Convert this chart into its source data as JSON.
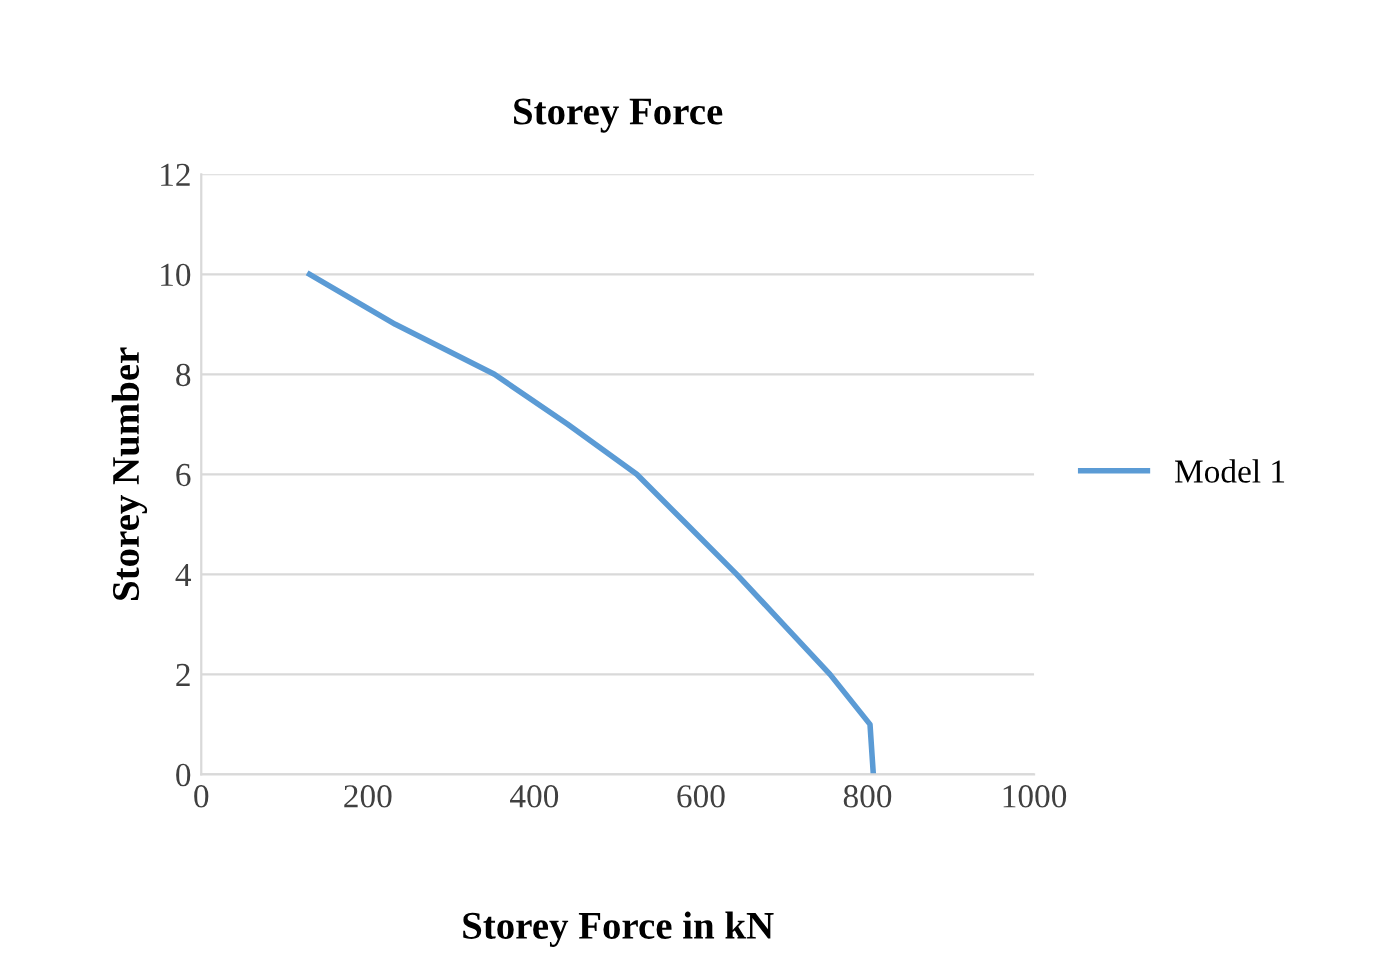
{
  "chart_data": {
    "type": "line",
    "title": "Storey Force",
    "xlabel": "Storey Force in kN",
    "ylabel": "Storey Number",
    "series": [
      {
        "name": "Model 1",
        "color": "#5b9bd5",
        "x": [
          807,
          803,
          755,
          699,
          643,
          583,
          523,
          440,
          352,
          233,
          130
        ],
        "values": [
          0,
          1,
          2,
          3,
          4,
          5,
          6,
          7,
          8,
          9,
          10
        ]
      }
    ],
    "xlim": [
      0,
      1000
    ],
    "xticks": [
      0,
      200,
      400,
      600,
      800,
      1000
    ],
    "ylim": [
      0,
      12
    ],
    "yticks": [
      0,
      2,
      4,
      6,
      8,
      10,
      12
    ],
    "grid": "y",
    "legend": "right",
    "marker": "none",
    "line_style": "solid"
  }
}
